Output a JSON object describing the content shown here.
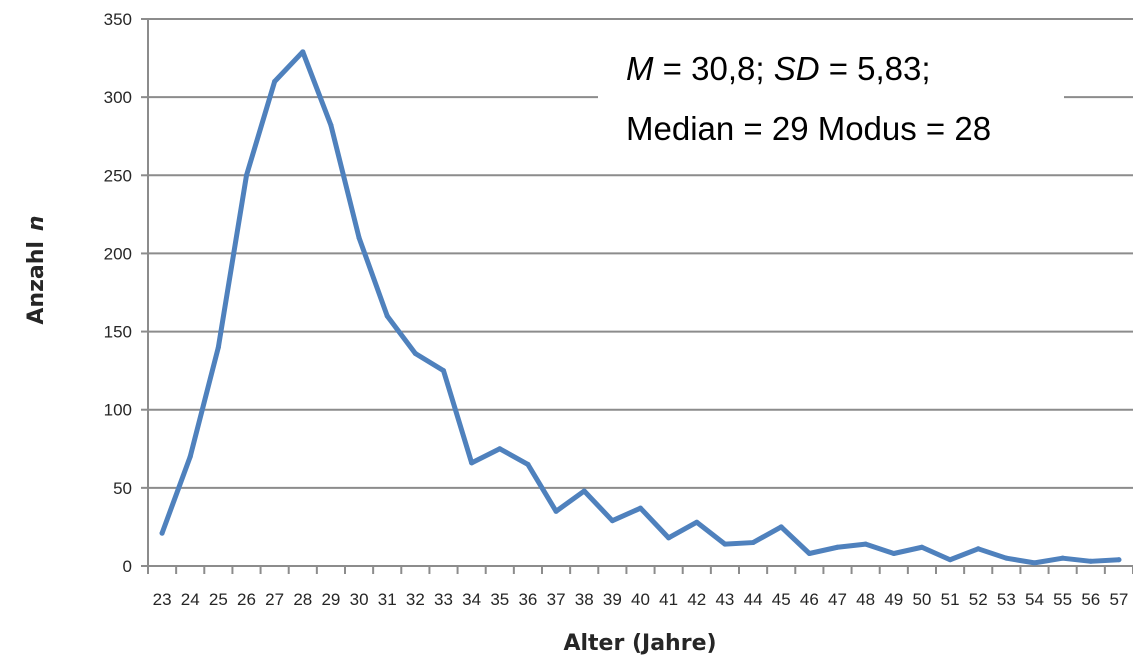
{
  "chart_data": {
    "type": "line",
    "xlabel": "Alter (Jahre)",
    "ylabel_text": "Anzahl",
    "ylabel_var": "n",
    "x": [
      23,
      24,
      25,
      26,
      27,
      28,
      29,
      30,
      31,
      32,
      33,
      34,
      35,
      36,
      37,
      38,
      39,
      40,
      41,
      42,
      43,
      44,
      45,
      46,
      47,
      48,
      49,
      50,
      51,
      52,
      53,
      54,
      55,
      56,
      57
    ],
    "series": [
      {
        "values": [
          21,
          70,
          140,
          250,
          310,
          329,
          282,
          210,
          160,
          136,
          125,
          66,
          75,
          65,
          35,
          48,
          29,
          37,
          18,
          28,
          14,
          15,
          25,
          8,
          12,
          14,
          8,
          12,
          4,
          11,
          5,
          2,
          5,
          3,
          4
        ]
      }
    ],
    "ylim": [
      0,
      350
    ],
    "yticks": [
      0,
      50,
      100,
      150,
      200,
      250,
      300,
      350
    ],
    "grid": true,
    "line_color": "#4f81bd",
    "annotation": {
      "line1": [
        {
          "text": "M",
          "italic": true
        },
        {
          "text": " = 30,8; ",
          "italic": false
        },
        {
          "text": "SD",
          "italic": true
        },
        {
          "text": " = 5,83;",
          "italic": false
        }
      ],
      "line2": "Median = 29 Modus = 28"
    }
  }
}
